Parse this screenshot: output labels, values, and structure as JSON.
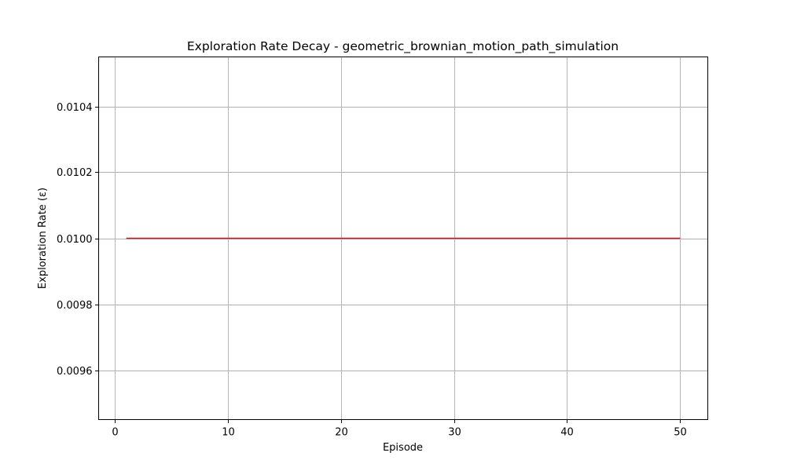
{
  "chart_data": {
    "type": "line",
    "title": "Exploration Rate Decay - geometric_brownian_motion_path_simulation",
    "xlabel": "Episode",
    "ylabel": "Exploration Rate (ε)",
    "xlim": [
      -1.45,
      52.45
    ],
    "ylim": [
      0.00945,
      0.01055
    ],
    "xticks": [
      0,
      10,
      20,
      30,
      40,
      50
    ],
    "xtick_labels": [
      "0",
      "10",
      "20",
      "30",
      "40",
      "50"
    ],
    "yticks": [
      0.0096,
      0.0098,
      0.01,
      0.0102,
      0.0104
    ],
    "ytick_labels": [
      "0.0096",
      "0.0098",
      "0.0100",
      "0.0102",
      "0.0104"
    ],
    "grid": true,
    "series": [
      {
        "color": "#ff0000",
        "x": [
          1,
          2,
          3,
          4,
          5,
          6,
          7,
          8,
          9,
          10,
          11,
          12,
          13,
          14,
          15,
          16,
          17,
          18,
          19,
          20,
          21,
          22,
          23,
          24,
          25,
          26,
          27,
          28,
          29,
          30,
          31,
          32,
          33,
          34,
          35,
          36,
          37,
          38,
          39,
          40,
          41,
          42,
          43,
          44,
          45,
          46,
          47,
          48,
          49,
          50
        ],
        "y": [
          0.01,
          0.01,
          0.01,
          0.01,
          0.01,
          0.01,
          0.01,
          0.01,
          0.01,
          0.01,
          0.01,
          0.01,
          0.01,
          0.01,
          0.01,
          0.01,
          0.01,
          0.01,
          0.01,
          0.01,
          0.01,
          0.01,
          0.01,
          0.01,
          0.01,
          0.01,
          0.01,
          0.01,
          0.01,
          0.01,
          0.01,
          0.01,
          0.01,
          0.01,
          0.01,
          0.01,
          0.01,
          0.01,
          0.01,
          0.01,
          0.01,
          0.01,
          0.01,
          0.01,
          0.01,
          0.01,
          0.01,
          0.01,
          0.01,
          0.01
        ]
      }
    ]
  }
}
